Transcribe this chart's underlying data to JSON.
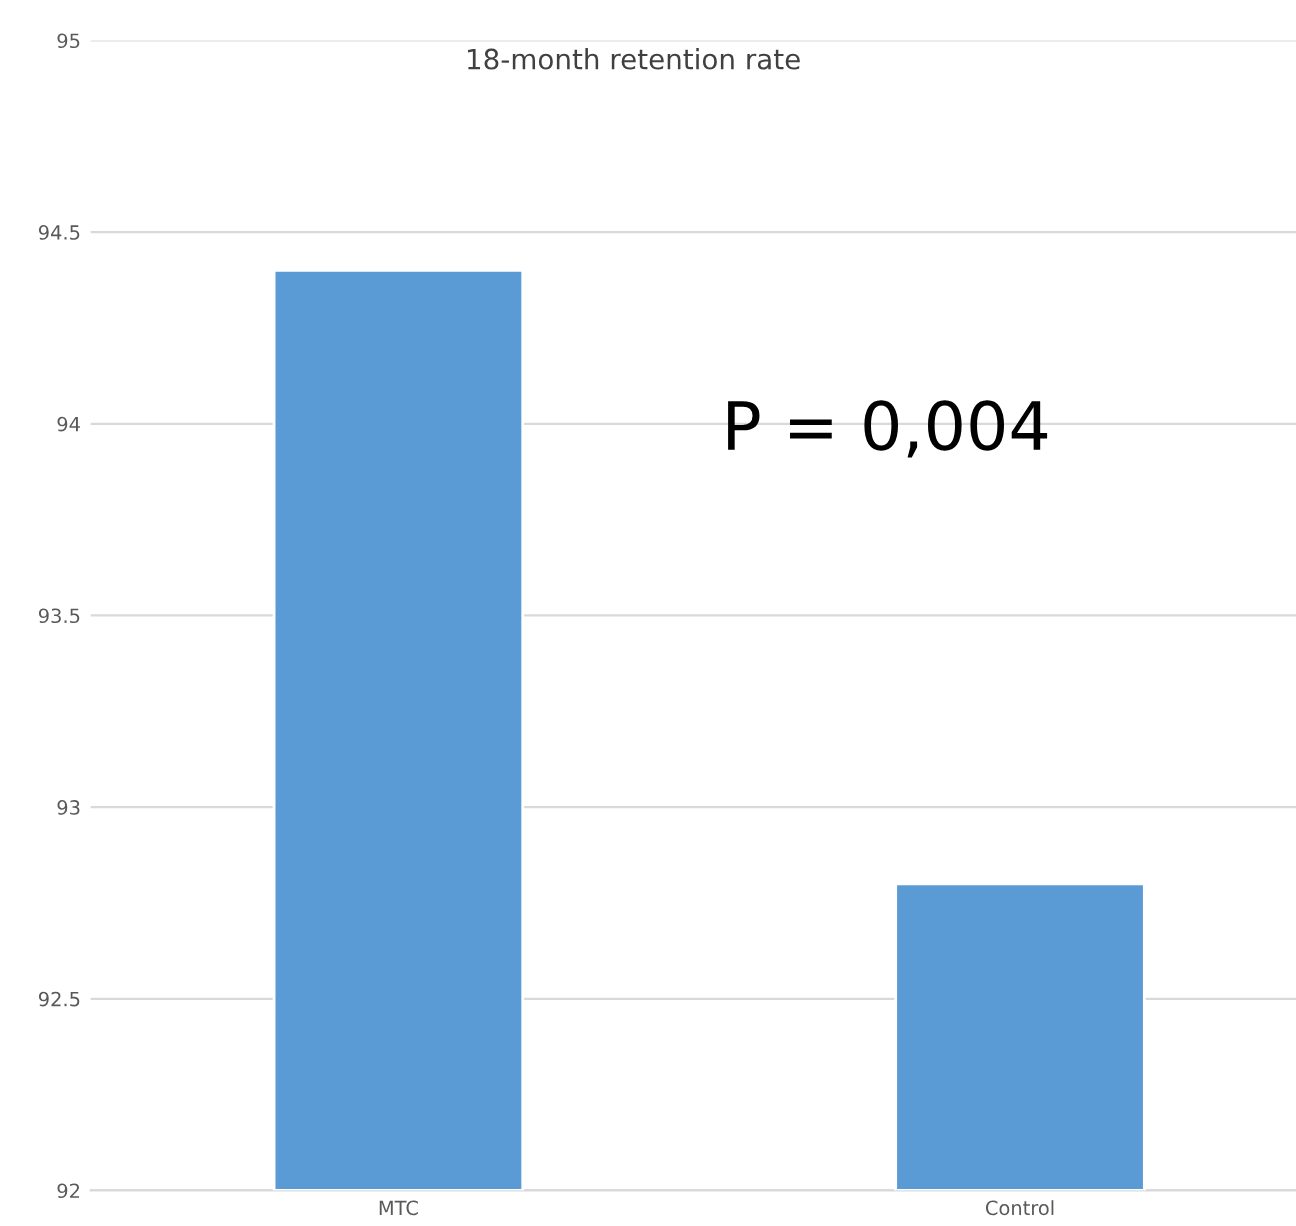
{
  "chart_data": {
    "type": "bar",
    "title": "18-month retention rate",
    "categories": [
      "MTC",
      "Control"
    ],
    "values": [
      94.4,
      92.8
    ],
    "color": "#5b9bd5",
    "ylim": [
      92,
      95
    ],
    "yticks": [
      92,
      92.5,
      93,
      93.5,
      94,
      94.5,
      95
    ],
    "grid": "y",
    "annotations": [
      "P = 0,004"
    ]
  }
}
